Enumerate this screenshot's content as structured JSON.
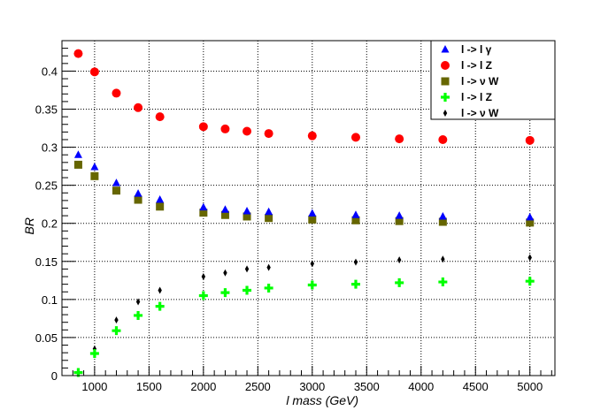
{
  "chart_data": {
    "type": "scatter",
    "xlabel": "l  mass (GeV)",
    "ylabel": "BR",
    "xlim": [
      700,
      5230
    ],
    "ylim": [
      0,
      0.44
    ],
    "x_ticks": [
      "1000",
      "1500",
      "2000",
      "2500",
      "3000",
      "3500",
      "4000",
      "4500",
      "5000"
    ],
    "y_ticks": [
      "0",
      "0.05",
      "0.1",
      "0.15",
      "0.2",
      "0.25",
      "0.3",
      "0.35",
      "0.4"
    ],
    "grid": true,
    "legend_position": "top-right",
    "x": [
      850,
      1000,
      1200,
      1400,
      1600,
      2000,
      2200,
      2400,
      2600,
      3000,
      3400,
      3800,
      4200,
      5000
    ],
    "series": [
      {
        "name": "l -> l γ",
        "marker": "triangle",
        "color": "#0000ff",
        "values": [
          0.29,
          0.274,
          0.253,
          0.239,
          0.231,
          0.221,
          0.218,
          0.216,
          0.215,
          0.213,
          0.211,
          0.21,
          0.209,
          0.208
        ]
      },
      {
        "name": "l -> l Z",
        "marker": "circle",
        "color": "#ff0000",
        "values": [
          0.423,
          0.399,
          0.371,
          0.352,
          0.34,
          0.327,
          0.324,
          0.321,
          0.318,
          0.315,
          0.313,
          0.311,
          0.31,
          0.309
        ]
      },
      {
        "name": "l -> ν W",
        "marker": "square",
        "color": "#666600",
        "values": [
          0.277,
          0.262,
          0.243,
          0.231,
          0.222,
          0.214,
          0.211,
          0.209,
          0.207,
          0.205,
          0.204,
          0.203,
          0.202,
          0.201
        ]
      },
      {
        "name": "l -> l Z",
        "marker": "cross",
        "color": "#00ff00",
        "values": [
          0.004,
          0.029,
          0.059,
          0.079,
          0.091,
          0.105,
          0.109,
          0.112,
          0.115,
          0.119,
          0.12,
          0.122,
          0.123,
          0.124
        ]
      },
      {
        "name": "l -> ν W",
        "marker": "diamond",
        "color": "#000000",
        "values": [
          0.004,
          0.035,
          0.073,
          0.097,
          0.112,
          0.13,
          0.135,
          0.14,
          0.142,
          0.147,
          0.149,
          0.152,
          0.153,
          0.155
        ]
      }
    ]
  }
}
